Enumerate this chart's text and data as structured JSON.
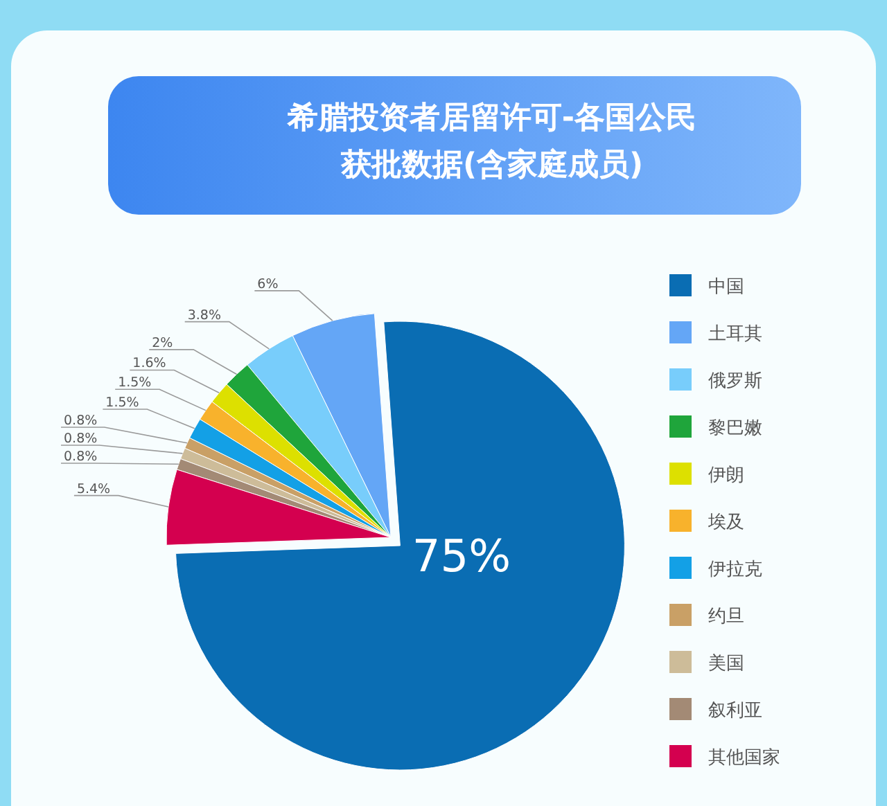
{
  "chart_data": {
    "type": "pie",
    "title": "希腊投资者居留许可-各国公民获批数据(含家庭成员)",
    "categories": [
      "中国",
      "土耳其",
      "俄罗斯",
      "黎巴嫩",
      "伊朗",
      "埃及",
      "伊拉克",
      "约旦",
      "美国",
      "叙利亚",
      "其他国家"
    ],
    "values": [
      75,
      6,
      3.8,
      2,
      1.6,
      1.5,
      1.5,
      0.8,
      0.8,
      0.8,
      5.4
    ],
    "value_labels": [
      "75%",
      "6%",
      "3.8%",
      "2%",
      "1.6%",
      "1.5%",
      "1.5%",
      "0.8%",
      "0.8%",
      "0.8%",
      "5.4%"
    ],
    "colors": [
      "#0a6db3",
      "#64a6f6",
      "#78cdfb",
      "#1fa53b",
      "#dde000",
      "#f8b22c",
      "#13a0e6",
      "#c9a066",
      "#cdbc99",
      "#a38a75",
      "#d4004f"
    ],
    "legend": "right"
  }
}
